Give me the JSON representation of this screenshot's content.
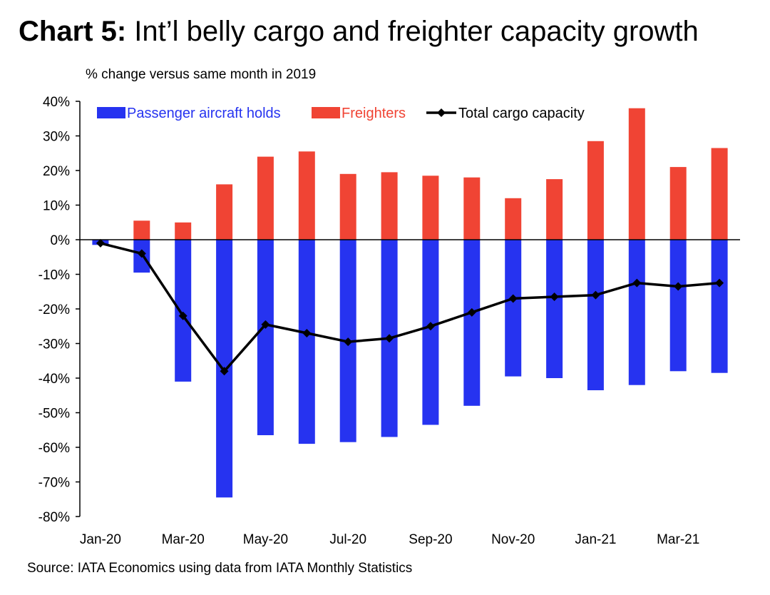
{
  "title": {
    "bold": "Chart 5:",
    "text": "Int’l belly cargo and freighter capacity growth"
  },
  "source": "Source: IATA Economics using data from IATA Monthly Statistics",
  "chart_data": {
    "type": "bar",
    "ylabel": "% change versus same month in 2019",
    "ylim": [
      -80,
      40
    ],
    "y_ticks": [
      "40%",
      "30%",
      "20%",
      "10%",
      "0%",
      "-10%",
      "-20%",
      "-30%",
      "-40%",
      "-50%",
      "-60%",
      "-70%",
      "-80%"
    ],
    "y_tick_values": [
      40,
      30,
      20,
      10,
      0,
      -10,
      -20,
      -30,
      -40,
      -50,
      -60,
      -70,
      -80
    ],
    "categories": [
      "Jan-20",
      "Feb-20",
      "Mar-20",
      "Apr-20",
      "May-20",
      "Jun-20",
      "Jul-20",
      "Aug-20",
      "Sep-20",
      "Oct-20",
      "Nov-20",
      "Dec-20",
      "Jan-21",
      "Feb-21",
      "Mar-21",
      "Apr-21"
    ],
    "x_tick_labels": [
      "Jan-20",
      "",
      "Mar-20",
      "",
      "May-20",
      "",
      "Jul-20",
      "",
      "Sep-20",
      "",
      "Nov-20",
      "",
      "Jan-21",
      "",
      "Mar-21",
      ""
    ],
    "legend_position": "top",
    "grid": false,
    "series": [
      {
        "name": "Passenger aircraft holds",
        "kind": "bar",
        "color": "#2633f0",
        "values": [
          -1.5,
          -9.5,
          -41,
          -74.5,
          -56.5,
          -59,
          -58.5,
          -57,
          -53.5,
          -48,
          -39.5,
          -40,
          -43.5,
          -42,
          -38,
          -38.5
        ]
      },
      {
        "name": "Freighters",
        "kind": "bar",
        "color": "#f04434",
        "values": [
          0,
          5.5,
          5,
          16,
          24,
          25.5,
          19,
          19.5,
          18.5,
          18,
          12,
          17.5,
          28.5,
          38,
          21,
          26.5
        ]
      },
      {
        "name": "Total cargo capacity",
        "kind": "line",
        "color": "#000000",
        "values": [
          -1,
          -4,
          -22,
          -38,
          -24.5,
          -27,
          -29.5,
          -28.5,
          -25,
          -21,
          -17,
          -16.5,
          -16,
          -12.5,
          -13.5,
          -12.5
        ]
      }
    ]
  }
}
